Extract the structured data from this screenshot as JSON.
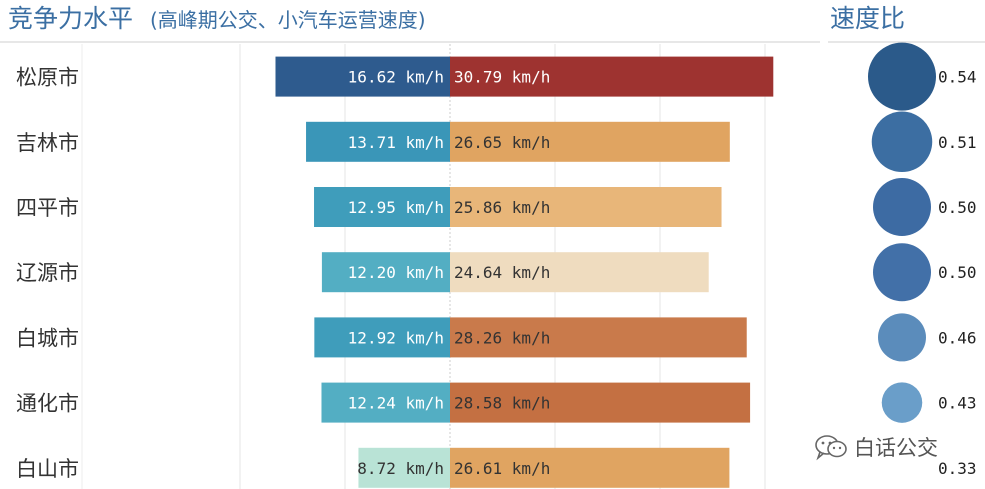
{
  "watermark": {
    "text": "白话公交",
    "icon": "wechat-icon"
  },
  "colors": {
    "bus_dark": "#2e5b8e",
    "bus_mid": "#3a96b8",
    "bus_light": "#b9e3d6",
    "car_dark": "#9e3330",
    "car_mid": "#e0a461",
    "car_light": "#efdcbf",
    "bubble": "#3c6da3",
    "bubble_light": "#6a9ec9",
    "grid": "#e6e6e6",
    "text": "#333333"
  },
  "chart_data": [
    {
      "type": "bar",
      "title": "竞争力水平",
      "subtitle": "(高峰期公交、小汽车运营速度)",
      "categories": [
        "松原市",
        "吉林市",
        "四平市",
        "辽源市",
        "白城市",
        "通化市",
        "白山市"
      ],
      "series": [
        {
          "values": [
            16.62,
            13.71,
            12.95,
            12.2,
            12.92,
            12.24,
            8.72
          ],
          "labels": [
            "16.62 km/h",
            "13.71 km/h",
            "12.95 km/h",
            "12.20 km/h",
            "12.92 km/h",
            "12.24 km/h",
            "8.72 km/h"
          ],
          "colors": [
            "#2e5b8e",
            "#3a96b8",
            "#3f9dbb",
            "#53aec3",
            "#3f9dbb",
            "#53aec3",
            "#b9e3d6"
          ]
        },
        {
          "values": [
            30.79,
            26.65,
            25.86,
            24.64,
            28.26,
            28.58,
            26.61
          ],
          "labels": [
            "30.79 km/h",
            "26.65 km/h",
            "25.86 km/h",
            "24.64 km/h",
            "28.26 km/h",
            "28.58 km/h",
            "26.61 km/h"
          ],
          "colors": [
            "#9e3330",
            "#e0a461",
            "#e8b679",
            "#efdcbf",
            "#c97a4b",
            "#c47042",
            "#e0a461"
          ]
        }
      ],
      "xlim": [
        -20,
        30.79
      ],
      "grid": true,
      "legend": "none"
    },
    {
      "type": "scatter",
      "title": "速度比",
      "categories": [
        "松原市",
        "吉林市",
        "四平市",
        "辽源市",
        "白城市",
        "通化市",
        "白山市"
      ],
      "values": [
        0.54,
        0.51,
        0.5,
        0.5,
        0.46,
        0.43,
        0.33
      ],
      "labels": [
        "0.54",
        "0.51",
        "0.50",
        "0.50",
        "0.46",
        "0.43",
        "0.33"
      ],
      "colors": [
        "#2b5a8a",
        "#3c6ea2",
        "#3d6ba3",
        "#4270a8",
        "#5b8cbb",
        "#6a9ec9",
        "#6a9ec9"
      ]
    }
  ]
}
